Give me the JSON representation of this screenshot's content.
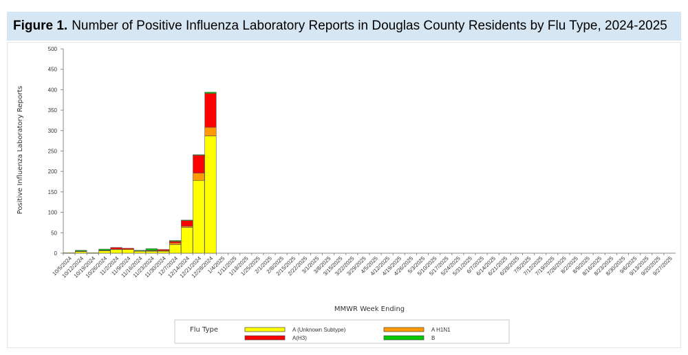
{
  "figure": {
    "number": "Figure 1.",
    "title": "Number of Positive Influenza Laboratory Reports in Douglas County Residents by Flu Type, 2024-2025"
  },
  "chart_data": {
    "type": "bar",
    "stacked": true,
    "ylabel": "Positive Influenza Laboratory Reports",
    "xlabel": "MMWR Week Ending",
    "ylim": [
      0,
      500
    ],
    "yticks": [
      0,
      50,
      100,
      150,
      200,
      250,
      300,
      350,
      400,
      450,
      500
    ],
    "grid": false,
    "categories": [
      "10/5/2024",
      "10/12/2024",
      "10/19/2024",
      "10/26/2024",
      "11/2/2024",
      "11/9/2024",
      "11/16/2024",
      "11/23/2024",
      "11/30/2024",
      "12/7/2024",
      "12/14/2024",
      "12/21/2024",
      "12/28/2024",
      "1/4/2025",
      "1/11/2025",
      "1/18/2025",
      "1/25/2025",
      "2/1/2025",
      "2/8/2025",
      "2/15/2025",
      "2/22/2025",
      "3/1/2025",
      "3/8/2025",
      "3/15/2025",
      "3/22/2025",
      "3/29/2025",
      "4/5/2025",
      "4/12/2025",
      "4/19/2025",
      "4/26/2025",
      "5/3/2025",
      "5/10/2025",
      "5/17/2025",
      "5/24/2025",
      "5/31/2025",
      "6/7/2025",
      "6/14/2025",
      "6/21/2025",
      "6/28/2025",
      "7/5/2025",
      "7/12/2025",
      "7/19/2025",
      "7/26/2025",
      "8/2/2025",
      "8/9/2025",
      "8/16/2025",
      "8/23/2025",
      "8/30/2025",
      "9/6/2025",
      "9/13/2025",
      "9/20/2025",
      "9/27/2025"
    ],
    "series": [
      {
        "name": "A (Unknown Subtype)",
        "color": "#ffff00",
        "values": [
          1,
          4,
          1,
          6,
          9,
          9,
          5,
          5,
          5,
          21,
          63,
          178,
          287,
          0,
          0,
          0,
          0,
          0,
          0,
          0,
          0,
          0,
          0,
          0,
          0,
          0,
          0,
          0,
          0,
          0,
          0,
          0,
          0,
          0,
          0,
          0,
          0,
          0,
          0,
          0,
          0,
          0,
          0,
          0,
          0,
          0,
          0,
          0,
          0,
          0,
          0,
          0
        ]
      },
      {
        "name": "A H1N1",
        "color": "#ff9900",
        "values": [
          0,
          0,
          0,
          0,
          1,
          0,
          0,
          1,
          1,
          4,
          3,
          18,
          21,
          0,
          0,
          0,
          0,
          0,
          0,
          0,
          0,
          0,
          0,
          0,
          0,
          0,
          0,
          0,
          0,
          0,
          0,
          0,
          0,
          0,
          0,
          0,
          0,
          0,
          0,
          0,
          0,
          0,
          0,
          0,
          0,
          0,
          0,
          0,
          0,
          0,
          0,
          0
        ]
      },
      {
        "name": "A(H3)",
        "color": "#ff0000",
        "values": [
          0,
          1,
          0,
          1,
          4,
          3,
          1,
          1,
          3,
          4,
          14,
          44,
          83,
          0,
          0,
          0,
          0,
          0,
          0,
          0,
          0,
          0,
          0,
          0,
          0,
          0,
          0,
          0,
          0,
          0,
          0,
          0,
          0,
          0,
          0,
          0,
          0,
          0,
          0,
          0,
          0,
          0,
          0,
          0,
          0,
          0,
          0,
          0,
          0,
          0,
          0,
          0
        ]
      },
      {
        "name": "B",
        "color": "#00cc00",
        "values": [
          0,
          2,
          0,
          3,
          0,
          0,
          1,
          4,
          0,
          2,
          1,
          1,
          3,
          0,
          0,
          0,
          0,
          0,
          0,
          0,
          0,
          0,
          0,
          0,
          0,
          0,
          0,
          0,
          0,
          0,
          0,
          0,
          0,
          0,
          0,
          0,
          0,
          0,
          0,
          0,
          0,
          0,
          0,
          0,
          0,
          0,
          0,
          0,
          0,
          0,
          0,
          0
        ]
      }
    ]
  },
  "legend": {
    "title": "Flu Type",
    "placement": "bottom"
  }
}
